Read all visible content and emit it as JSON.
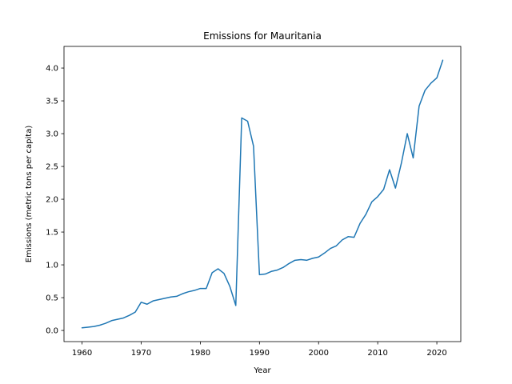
{
  "chart_data": {
    "type": "line",
    "title": "Emissions for Mauritania",
    "xlabel": "Year",
    "ylabel": "Emissions (metric tons per capita)",
    "xlim": [
      1956.95,
      2024.05
    ],
    "ylim": [
      -0.17,
      4.33
    ],
    "xticks": [
      1960,
      1970,
      1980,
      1990,
      2000,
      2010,
      2020
    ],
    "yticks": [
      "0.0",
      "0.5",
      "1.0",
      "1.5",
      "2.0",
      "2.5",
      "3.0",
      "3.5",
      "4.0"
    ],
    "grid": false,
    "color": "#1f77b4",
    "series": [
      {
        "x": [
          1960,
          1961,
          1962,
          1963,
          1964,
          1965,
          1966,
          1967,
          1968,
          1969,
          1970,
          1971,
          1972,
          1973,
          1974,
          1975,
          1976,
          1977,
          1978,
          1979,
          1980,
          1981,
          1982,
          1983,
          1984,
          1985,
          1986,
          1987,
          1988,
          1989,
          1990,
          1991,
          1992,
          1993,
          1994,
          1995,
          1996,
          1997,
          1998,
          1999,
          2000,
          2001,
          2002,
          2003,
          2004,
          2005,
          2006,
          2007,
          2008,
          2009,
          2010,
          2011,
          2012,
          2013,
          2014,
          2015,
          2016,
          2017,
          2018,
          2019,
          2020,
          2021
        ],
        "values": [
          0.04,
          0.05,
          0.06,
          0.08,
          0.11,
          0.15,
          0.17,
          0.19,
          0.23,
          0.28,
          0.43,
          0.4,
          0.45,
          0.47,
          0.49,
          0.51,
          0.52,
          0.56,
          0.59,
          0.61,
          0.64,
          0.64,
          0.88,
          0.94,
          0.87,
          0.67,
          0.38,
          3.24,
          3.19,
          2.81,
          0.85,
          0.86,
          0.9,
          0.92,
          0.96,
          1.02,
          1.07,
          1.08,
          1.07,
          1.1,
          1.12,
          1.18,
          1.25,
          1.29,
          1.38,
          1.43,
          1.42,
          1.63,
          1.77,
          1.96,
          2.04,
          2.15,
          2.45,
          2.17,
          2.55,
          3.0,
          2.63,
          3.42,
          3.66,
          3.77,
          3.85,
          4.12
        ]
      }
    ]
  }
}
